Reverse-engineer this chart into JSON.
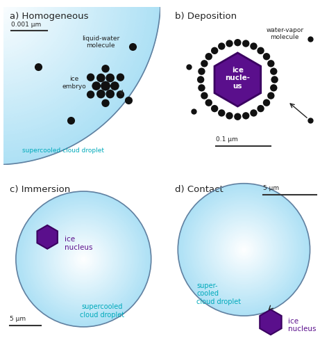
{
  "panel_titles": [
    "a) Homogeneous",
    "b) Deposition",
    "c) Immersion",
    "d) Contact"
  ],
  "background_color": "#ffffff",
  "nucleus_color": "#5a0f8c",
  "nucleus_edge_color": "#3a0060",
  "text_color_cyan": "#00aabb",
  "text_color_black": "#222222",
  "text_color_purple": "#5a0f8c",
  "text_color_white": "#ffffff",
  "molecule_color": "#111111",
  "scale_bar_color": "#333333",
  "droplet_edge_color": "#6080a0"
}
